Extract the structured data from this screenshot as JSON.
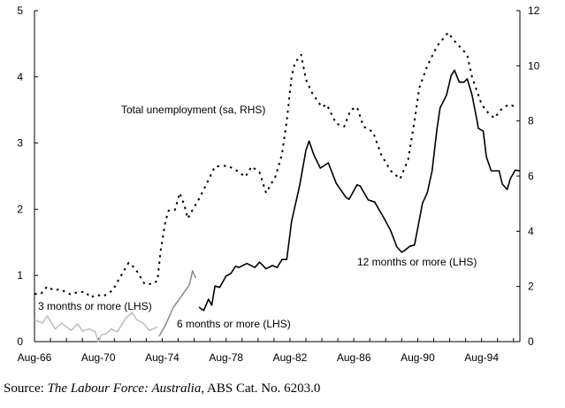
{
  "chart_data": {
    "type": "line",
    "title": "",
    "xlabel": "",
    "ylabel_left": "",
    "ylabel_right": "",
    "x_tick_labels": [
      "Aug-66",
      "Aug-70",
      "Aug-74",
      "Aug-78",
      "Aug-82",
      "Aug-86",
      "Aug-90",
      "Aug-94"
    ],
    "x_tick_years": [
      1966.6,
      1970.6,
      1974.6,
      1978.6,
      1982.6,
      1986.6,
      1990.6,
      1994.6
    ],
    "xlim": [
      1966.6,
      1997.0
    ],
    "ylim_left": [
      0,
      5
    ],
    "ylim_right": [
      0,
      12
    ],
    "y_ticks_left": [
      0,
      1,
      2,
      3,
      4,
      5
    ],
    "y_ticks_right": [
      0,
      2,
      4,
      6,
      8,
      10,
      12
    ],
    "grid": false,
    "series": [
      {
        "name": "Total unemployment (sa, RHS)",
        "axis": "right",
        "style": "dotted",
        "color": "#000000",
        "x": [
          1966.6,
          1967.0,
          1967.4,
          1967.8,
          1968.2,
          1968.9,
          1969.3,
          1969.8,
          1970.1,
          1970.5,
          1970.9,
          1971.5,
          1972.0,
          1972.5,
          1972.9,
          1973.5,
          1974.0,
          1974.3,
          1974.5,
          1974.8,
          1975.0,
          1975.4,
          1975.7,
          1976.0,
          1976.2,
          1976.5,
          1976.9,
          1977.4,
          1977.9,
          1978.7,
          1979.3,
          1979.8,
          1980.2,
          1980.7,
          1981.1,
          1981.7,
          1982.1,
          1982.4,
          1982.7,
          1982.9,
          1983.3,
          1983.6,
          1984.0,
          1984.6,
          1984.9,
          1985.5,
          1986.0,
          1986.4,
          1986.8,
          1987.2,
          1987.8,
          1988.3,
          1988.9,
          1989.5,
          1990.0,
          1990.4,
          1990.7,
          1991.2,
          1991.8,
          1992.5,
          1992.9,
          1993.7,
          1994.0,
          1994.6,
          1995.0,
          1995.4,
          1995.8,
          1996.3,
          1996.8
        ],
        "y": [
          1.73,
          1.73,
          2.0,
          1.86,
          1.9,
          1.7,
          1.8,
          1.8,
          1.6,
          1.7,
          1.64,
          1.86,
          2.37,
          2.86,
          2.66,
          2.09,
          2.09,
          2.21,
          3.3,
          4.36,
          4.75,
          4.78,
          5.39,
          4.91,
          4.46,
          4.78,
          5.17,
          5.74,
          6.35,
          6.38,
          6.19,
          5.97,
          6.35,
          6.13,
          5.39,
          6.0,
          6.8,
          8.0,
          9.6,
          10.1,
          10.4,
          9.5,
          9.0,
          8.5,
          8.6,
          7.9,
          7.8,
          8.4,
          8.5,
          7.8,
          7.6,
          6.8,
          6.2,
          5.9,
          6.6,
          8.0,
          9.2,
          10.0,
          10.7,
          11.2,
          10.9,
          10.4,
          9.6,
          8.6,
          8.3,
          8.1,
          8.4,
          8.6,
          8.5
        ]
      },
      {
        "name": "3 months or more (LHS)",
        "axis": "left",
        "style": "solid",
        "color": "#c0c0c0",
        "x": [
          1966.6,
          1967.1,
          1967.4,
          1967.9,
          1968.3,
          1968.9,
          1969.3,
          1969.6,
          1970.0,
          1970.4,
          1970.6,
          1970.8,
          1971.1,
          1971.4,
          1971.8,
          1972.3,
          1972.7,
          1973.0,
          1973.4,
          1973.8,
          1974.3
        ],
        "y": [
          0.33,
          0.28,
          0.39,
          0.19,
          0.28,
          0.17,
          0.27,
          0.16,
          0.19,
          0.15,
          0.0,
          0.1,
          0.12,
          0.19,
          0.15,
          0.35,
          0.44,
          0.33,
          0.28,
          0.17,
          0.22
        ]
      },
      {
        "name": "6 months or more (LHS)",
        "axis": "left",
        "style": "solid",
        "color": "#909090",
        "x": [
          1974.4,
          1974.8,
          1975.3,
          1975.7,
          1976.3,
          1976.5,
          1976.7
        ],
        "y": [
          0.08,
          0.25,
          0.52,
          0.65,
          0.86,
          1.07,
          0.96
        ]
      },
      {
        "name": "12 months or more (LHS)",
        "axis": "left",
        "style": "solid",
        "color": "#000000",
        "x": [
          1976.9,
          1977.2,
          1977.5,
          1977.7,
          1977.9,
          1978.2,
          1978.6,
          1978.9,
          1979.2,
          1979.4,
          1979.9,
          1980.4,
          1980.7,
          1981.1,
          1981.5,
          1981.8,
          1982.1,
          1982.4,
          1982.7,
          1983.2,
          1983.6,
          1983.8,
          1984.1,
          1984.5,
          1985.0,
          1985.5,
          1986.1,
          1986.3,
          1986.8,
          1987.0,
          1987.5,
          1987.9,
          1988.5,
          1988.9,
          1989.3,
          1989.6,
          1989.8,
          1990.1,
          1990.4,
          1990.9,
          1991.2,
          1991.5,
          1991.8,
          1992.0,
          1992.4,
          1992.7,
          1992.9,
          1993.2,
          1993.5,
          1993.7,
          1994.0,
          1994.3,
          1994.4,
          1994.7,
          1994.9,
          1995.2,
          1995.7,
          1995.9,
          1996.2,
          1996.4,
          1996.7,
          1997.0
        ],
        "y": [
          0.52,
          0.47,
          0.64,
          0.55,
          0.84,
          0.82,
          0.99,
          1.03,
          1.14,
          1.12,
          1.18,
          1.12,
          1.2,
          1.1,
          1.15,
          1.12,
          1.24,
          1.24,
          1.82,
          2.35,
          2.89,
          3.03,
          2.82,
          2.62,
          2.7,
          2.39,
          2.18,
          2.15,
          2.37,
          2.35,
          2.14,
          2.11,
          1.86,
          1.68,
          1.43,
          1.35,
          1.38,
          1.44,
          1.46,
          2.09,
          2.25,
          2.58,
          3.2,
          3.53,
          3.72,
          4.02,
          4.1,
          3.92,
          3.92,
          3.97,
          3.73,
          3.36,
          3.22,
          3.18,
          2.79,
          2.58,
          2.58,
          2.38,
          2.3,
          2.46,
          2.59,
          2.58
        ]
      }
    ],
    "annotations": [
      "Total unemployment (sa, RHS)",
      "3 months or more (LHS)",
      "6 months or more (LHS)",
      "12 months or more (LHS)"
    ]
  },
  "source": {
    "prefix": "Source: ",
    "title": "The Labour Force: Australia",
    "suffix": ", ABS Cat. No. 6203.0"
  }
}
